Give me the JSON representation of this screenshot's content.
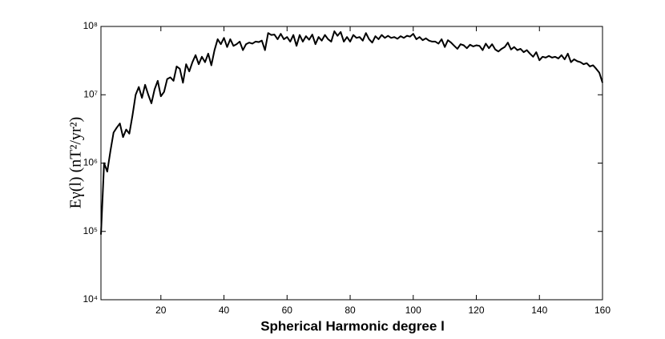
{
  "chart_data": {
    "type": "line",
    "x_label": "Spherical Harmonic degree l",
    "y_label": "Eγ(l)  (nT²/yr²)",
    "log_y": true,
    "x": [
      1,
      2,
      3,
      4,
      5,
      6,
      7,
      8,
      9,
      10,
      11,
      12,
      13,
      14,
      15,
      16,
      17,
      18,
      19,
      20,
      21,
      22,
      23,
      24,
      25,
      26,
      27,
      28,
      29,
      30,
      31,
      32,
      33,
      34,
      35,
      36,
      37,
      38,
      39,
      40,
      41,
      42,
      43,
      44,
      45,
      46,
      47,
      48,
      49,
      50,
      51,
      52,
      53,
      54,
      55,
      56,
      57,
      58,
      59,
      60,
      61,
      62,
      63,
      64,
      65,
      66,
      67,
      68,
      69,
      70,
      71,
      72,
      73,
      74,
      75,
      76,
      77,
      78,
      79,
      80,
      81,
      82,
      83,
      84,
      85,
      86,
      87,
      88,
      89,
      90,
      91,
      92,
      93,
      94,
      95,
      96,
      97,
      98,
      99,
      100,
      101,
      102,
      103,
      104,
      105,
      106,
      107,
      108,
      109,
      110,
      111,
      112,
      113,
      114,
      115,
      116,
      117,
      118,
      119,
      120,
      121,
      122,
      123,
      124,
      125,
      126,
      127,
      128,
      129,
      130,
      131,
      132,
      133,
      134,
      135,
      136,
      137,
      138,
      139,
      140,
      141,
      142,
      143,
      144,
      145,
      146,
      147,
      148,
      149,
      150,
      151,
      152,
      153,
      154,
      155,
      156,
      157,
      158,
      159,
      160
    ],
    "series": [
      {
        "color": "#000000",
        "values": [
          90000,
          1000000,
          750000,
          1500000,
          2800000,
          3300000,
          3800000,
          2400000,
          3100000,
          2700000,
          5000000,
          10000000,
          13000000,
          9000000,
          14000000,
          10000000,
          7500000,
          12000000,
          16000000,
          9500000,
          11000000,
          17000000,
          18000000,
          16000000,
          26000000,
          24000000,
          15000000,
          28000000,
          22000000,
          30000000,
          38000000,
          28000000,
          36000000,
          30000000,
          40000000,
          27000000,
          45000000,
          65000000,
          55000000,
          68000000,
          50000000,
          65000000,
          52000000,
          55000000,
          60000000,
          45000000,
          55000000,
          58000000,
          56000000,
          60000000,
          59000000,
          62000000,
          45000000,
          80000000,
          75000000,
          76000000,
          65000000,
          78000000,
          65000000,
          70000000,
          60000000,
          75000000,
          52000000,
          75000000,
          60000000,
          72000000,
          64000000,
          76000000,
          55000000,
          70000000,
          62000000,
          75000000,
          65000000,
          60000000,
          85000000,
          73000000,
          83000000,
          60000000,
          70000000,
          60000000,
          75000000,
          68000000,
          70000000,
          62000000,
          80000000,
          65000000,
          58000000,
          72000000,
          65000000,
          75000000,
          68000000,
          73000000,
          68000000,
          70000000,
          66000000,
          72000000,
          68000000,
          73000000,
          71000000,
          78000000,
          65000000,
          70000000,
          63000000,
          67000000,
          62000000,
          60000000,
          60000000,
          56000000,
          65000000,
          50000000,
          63000000,
          58000000,
          52000000,
          47000000,
          55000000,
          53000000,
          48000000,
          54000000,
          51000000,
          53000000,
          52000000,
          45000000,
          56000000,
          48000000,
          55000000,
          46000000,
          43000000,
          47000000,
          50000000,
          58000000,
          46000000,
          50000000,
          45000000,
          47000000,
          42000000,
          45000000,
          40000000,
          36000000,
          42000000,
          32000000,
          36000000,
          35000000,
          37000000,
          35000000,
          36000000,
          34000000,
          38000000,
          33000000,
          40000000,
          30000000,
          33000000,
          31000000,
          30000000,
          28000000,
          29000000,
          26000000,
          27000000,
          24000000,
          21000000,
          15000000
        ]
      }
    ],
    "xlim": [
      1,
      160
    ],
    "xticks": [
      20,
      40,
      60,
      80,
      100,
      120,
      140,
      160
    ],
    "ylim": [
      10000,
      100000000
    ],
    "yticks": [
      {
        "value": 10000,
        "label": "10⁴"
      },
      {
        "value": 100000,
        "label": "10⁵"
      },
      {
        "value": 1000000,
        "label": "10⁶"
      },
      {
        "value": 10000000,
        "label": "10⁷"
      },
      {
        "value": 100000000,
        "label": "10⁸"
      }
    ],
    "grid": false
  }
}
